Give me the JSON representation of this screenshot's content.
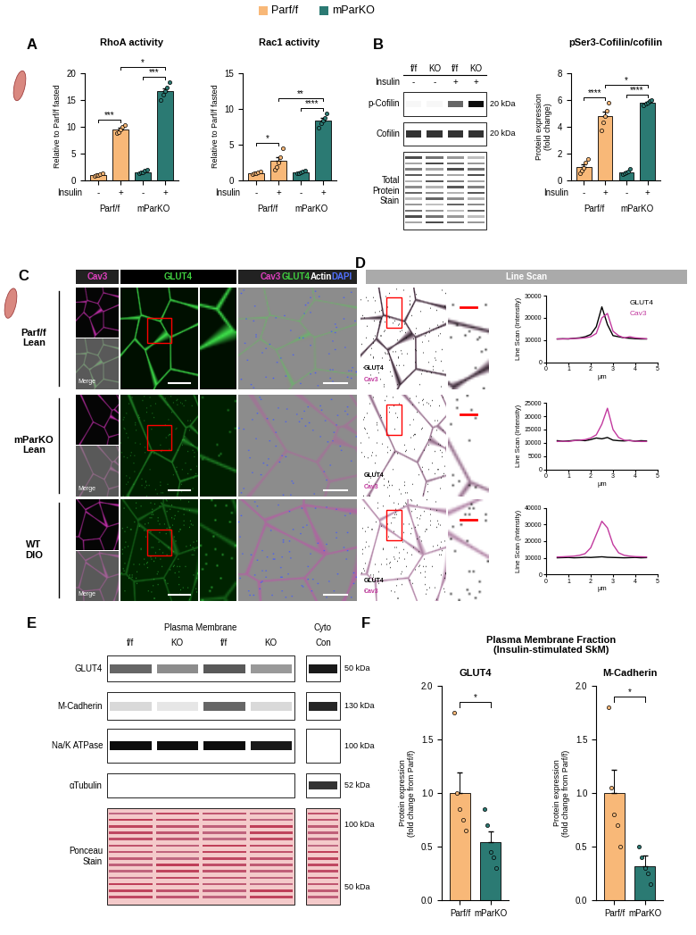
{
  "figure_legend": [
    {
      "name": "Parf/f",
      "color": "#F8B878"
    },
    {
      "name": "mParKO",
      "color": "#2B7A73"
    }
  ],
  "panel_labels": [
    "A",
    "B",
    "C",
    "D",
    "E",
    "F"
  ],
  "fraction_title": "Plasma Membrane Fraction\n(Insulin-stimulated SkM)",
  "chart_data": [
    {
      "type": "bar",
      "title": "RhoA activity",
      "y_label": "Relative to Parf/f fasted",
      "x_label": "Insulin",
      "categories": [
        "-",
        "+",
        "-",
        "+"
      ],
      "groups": [
        "Parf/f",
        "mParKO"
      ],
      "values": [
        1.0,
        9.5,
        1.5,
        16.6
      ],
      "errors": [
        0.08,
        0.27,
        0.12,
        0.57
      ],
      "points": [
        [
          0.8,
          0.9,
          1.0,
          1.1,
          1.2
        ],
        [
          8.8,
          9.0,
          9.5,
          9.9,
          10.3
        ],
        [
          1.2,
          1.4,
          1.5,
          1.7,
          1.9
        ],
        [
          15.0,
          16.0,
          16.6,
          17.2,
          18.3
        ]
      ],
      "colors": [
        "#F8B878",
        "#F8B878",
        "#2B7A73",
        "#2B7A73"
      ],
      "ylim": [
        0,
        20
      ],
      "yticks": [
        0,
        5,
        10,
        15,
        20
      ],
      "comparisons": [
        {
          "between": [
            0,
            1
          ],
          "label": "***"
        },
        {
          "between": [
            2,
            3
          ],
          "label": "***"
        },
        {
          "between": [
            1,
            3
          ],
          "label": "*"
        }
      ]
    },
    {
      "type": "bar",
      "title": "Rac1 activity",
      "y_label": "Relative to Parf/f fasted",
      "x_label": "Insulin",
      "categories": [
        "-",
        "+",
        "-",
        "+"
      ],
      "groups": [
        "Parf/f",
        "mParKO"
      ],
      "values": [
        1.0,
        2.7,
        1.1,
        8.3
      ],
      "errors": [
        0.07,
        0.53,
        0.07,
        0.34
      ],
      "points": [
        [
          0.8,
          0.9,
          1.0,
          1.1,
          1.2
        ],
        [
          1.5,
          1.8,
          2.5,
          3.2,
          4.5
        ],
        [
          0.9,
          1.0,
          1.1,
          1.2,
          1.3
        ],
        [
          7.3,
          7.9,
          8.3,
          8.7,
          9.3
        ]
      ],
      "colors": [
        "#F8B878",
        "#F8B878",
        "#2B7A73",
        "#2B7A73"
      ],
      "ylim": [
        0,
        15
      ],
      "yticks": [
        0,
        5,
        10,
        15
      ],
      "comparisons": [
        {
          "between": [
            0,
            1
          ],
          "label": "*"
        },
        {
          "between": [
            2,
            3
          ],
          "label": "****"
        },
        {
          "between": [
            1,
            3
          ],
          "label": "**"
        }
      ]
    },
    {
      "type": "bar",
      "title": "pSer3-Cofilin/cofilin",
      "y_label": "Protein expression\n(fold change)",
      "x_label": "Insulin",
      "categories": [
        "-",
        "+",
        "-",
        "+"
      ],
      "groups": [
        "Parf/f",
        "mParKO"
      ],
      "values": [
        1.0,
        4.76,
        0.6,
        5.8
      ],
      "errors": [
        0.2,
        0.36,
        0.07,
        0.07
      ],
      "points": [
        [
          0.5,
          0.7,
          0.9,
          1.3,
          1.6
        ],
        [
          3.7,
          4.3,
          4.8,
          5.2,
          5.8
        ],
        [
          0.45,
          0.5,
          0.55,
          0.65,
          0.85
        ],
        [
          5.6,
          5.7,
          5.8,
          5.9,
          6.0
        ]
      ],
      "colors": [
        "#F8B878",
        "#F8B878",
        "#2B7A73",
        "#2B7A73"
      ],
      "ylim": [
        0,
        8
      ],
      "yticks": [
        0,
        2,
        4,
        6,
        8
      ],
      "comparisons": [
        {
          "between": [
            0,
            1
          ],
          "label": "****"
        },
        {
          "between": [
            2,
            3
          ],
          "label": "****"
        },
        {
          "between": [
            1,
            3
          ],
          "label": "*"
        }
      ]
    },
    {
      "type": "bar",
      "title": "GLUT4",
      "y_label": "Protein expression\n(fold change from Parf/f)",
      "categories": [
        "Parf/f",
        "mParKO"
      ],
      "values": [
        1.0,
        0.54
      ],
      "errors": [
        0.19,
        0.1
      ],
      "points": [
        [
          1.75,
          1.0,
          0.85,
          0.75,
          0.65
        ],
        [
          0.85,
          0.7,
          0.45,
          0.4,
          0.3
        ]
      ],
      "colors": [
        "#F8B878",
        "#2B7A73"
      ],
      "ylim": [
        0,
        2.0
      ],
      "yticks": [
        {
          "value": 0,
          "label": "0.0"
        },
        {
          "value": 0.5,
          "label": "0.5"
        },
        {
          "value": 1.0,
          "label": "1.0"
        },
        {
          "value": 1.5,
          "label": "1.5"
        },
        {
          "value": 2.0,
          "label": "2.0"
        }
      ],
      "comparisons": [
        {
          "between": [
            0,
            1
          ],
          "label": "*"
        }
      ]
    },
    {
      "type": "bar",
      "title": "M-Cadherin",
      "y_label": "Protein expression\n(fold change from Parf/f)",
      "categories": [
        "Parf/f",
        "mParKO"
      ],
      "values": [
        1.0,
        0.32
      ],
      "errors": [
        0.22,
        0.1
      ],
      "points": [
        [
          1.8,
          1.05,
          0.8,
          0.7,
          0.5
        ],
        [
          0.5,
          0.4,
          0.3,
          0.25,
          0.15
        ]
      ],
      "colors": [
        "#F8B878",
        "#2B7A73"
      ],
      "ylim": [
        0,
        2.0
      ],
      "yticks": [
        {
          "value": 0,
          "label": "0.0"
        },
        {
          "value": 0.5,
          "label": "0.5"
        },
        {
          "value": 1.0,
          "label": "1.0"
        },
        {
          "value": 1.5,
          "label": "1.5"
        },
        {
          "value": 2.0,
          "label": "2.0"
        }
      ],
      "comparisons": [
        {
          "between": [
            0,
            1
          ],
          "label": "*"
        }
      ]
    },
    {
      "type": "line",
      "y_label": "Line Scan (Intensity)",
      "x_label": "µm",
      "legend": "upper right",
      "x": [
        0.5,
        0.75,
        1.0,
        1.25,
        1.5,
        1.75,
        2.0,
        2.25,
        2.5,
        2.75,
        3.0,
        3.25,
        3.5,
        3.75,
        4.0,
        4.25,
        4.5
      ],
      "series": [
        {
          "name": "GLUT4",
          "color": "#000000",
          "values": [
            10500,
            10600,
            10500,
            10800,
            11000,
            11500,
            12500,
            16000,
            25000,
            17000,
            12000,
            11500,
            11000,
            10800,
            10600,
            10500,
            10500
          ]
        },
        {
          "name": "Cav3",
          "color": "#C2399E",
          "values": [
            10500,
            10500,
            10600,
            10700,
            10800,
            11000,
            11500,
            13000,
            20000,
            22000,
            14000,
            12000,
            11000,
            11500,
            11000,
            10800,
            10600
          ]
        }
      ],
      "xlim": [
        0,
        5
      ],
      "xticks": [
        0,
        1,
        2,
        3,
        4,
        5
      ],
      "ylim": [
        0,
        30000
      ],
      "yticks": [
        0,
        10000,
        20000,
        30000
      ]
    },
    {
      "type": "line",
      "y_label": "Line Scan (Intensity)",
      "x_label": "µm",
      "x": [
        0.5,
        0.75,
        1.0,
        1.25,
        1.5,
        1.75,
        2.0,
        2.25,
        2.5,
        2.75,
        3.0,
        3.25,
        3.5,
        3.75,
        4.0,
        4.25,
        4.5
      ],
      "series": [
        {
          "name": "GLUT4",
          "color": "#000000",
          "values": [
            10800,
            10600,
            10700,
            10900,
            11000,
            10800,
            11200,
            11800,
            11500,
            12000,
            11000,
            10800,
            10700,
            10900,
            10600,
            10800,
            10700
          ]
        },
        {
          "name": "Cav3",
          "color": "#C2399E",
          "values": [
            10500,
            10600,
            10500,
            10800,
            11000,
            11200,
            11800,
            13000,
            17000,
            23000,
            15000,
            12000,
            11000,
            10800,
            10600,
            10500,
            10500
          ]
        }
      ],
      "xlim": [
        0,
        5
      ],
      "xticks": [
        0,
        1,
        2,
        3,
        4,
        5
      ],
      "ylim": [
        0,
        25000
      ],
      "yticks": [
        0,
        5000,
        10000,
        15000,
        20000,
        25000
      ]
    },
    {
      "type": "line",
      "y_label": "Line Scan (Intensity)",
      "x_label": "µm",
      "x": [
        0.5,
        0.75,
        1.0,
        1.25,
        1.5,
        1.75,
        2.0,
        2.25,
        2.5,
        2.75,
        3.0,
        3.25,
        3.5,
        3.75,
        4.0,
        4.25,
        4.5
      ],
      "series": [
        {
          "name": "GLUT4",
          "color": "#000000",
          "values": [
            10000,
            10100,
            10200,
            10000,
            10100,
            10300,
            10200,
            10400,
            10600,
            10300,
            10200,
            10100,
            10000,
            10100,
            10200,
            10000,
            10100
          ]
        },
        {
          "name": "Cav3",
          "color": "#C2399E",
          "values": [
            10500,
            10600,
            10800,
            11000,
            11500,
            12500,
            16000,
            24000,
            32000,
            28000,
            18000,
            13000,
            11500,
            11000,
            10700,
            10600,
            10500
          ]
        }
      ],
      "xlim": [
        0,
        5
      ],
      "xticks": [
        0,
        1,
        2,
        3,
        4,
        5
      ],
      "ylim": [
        0,
        40000
      ],
      "yticks": [
        0,
        10000,
        20000,
        30000,
        40000
      ]
    }
  ],
  "blot_B": {
    "lanes": [
      "f/f",
      "KO",
      "f/f",
      "KO"
    ],
    "treatment_label": "Insulin",
    "treatment": [
      "-",
      "-",
      "+",
      "+"
    ],
    "rows": [
      {
        "name": "p-Cofilin",
        "size": "20 kDa"
      },
      {
        "name": "Cofilin",
        "size": "20 kDa"
      },
      {
        "name": "Total\nProtein\nStain"
      }
    ]
  },
  "blot_E": {
    "groups": [
      {
        "name": "Plasma Membrane",
        "lanes": [
          "f/f",
          "KO",
          "f/f",
          "KO"
        ]
      },
      {
        "name": "Cyto",
        "lanes": [
          "Con"
        ]
      }
    ],
    "rows": [
      {
        "name": "GLUT4",
        "size": "50 kDa"
      },
      {
        "name": "M-Cadherin",
        "size": "130 kDa"
      },
      {
        "name": "Na/K ATPase",
        "size": "100 kDa"
      },
      {
        "name": "αTubulin",
        "size": "52 kDa"
      },
      {
        "name": "Ponceau\nStain",
        "sizes": [
          "100 kDa",
          "50 kDa"
        ]
      }
    ]
  },
  "micrographs": {
    "headers": {
      "cav3": "Cav3",
      "glut4": "GLUT4",
      "merge": [
        {
          "text": "Cav3",
          "color": "#E040C0"
        },
        {
          "text": "GLUT4",
          "color": "#40D040"
        },
        {
          "text": "Actin",
          "color": "#FFFFFF"
        },
        {
          "text": "DAPI",
          "color": "#5070FF"
        }
      ],
      "line_scan": "Line Scan"
    },
    "rows": [
      "Parf/f\nLean",
      "mParKO\nLean",
      "WT\nDIO"
    ],
    "inset_label": "Merge",
    "overlay_labels": [
      {
        "text": "GLUT4",
        "color": "#000000"
      },
      {
        "text": "Cav3",
        "color": "#C2399E"
      }
    ]
  }
}
